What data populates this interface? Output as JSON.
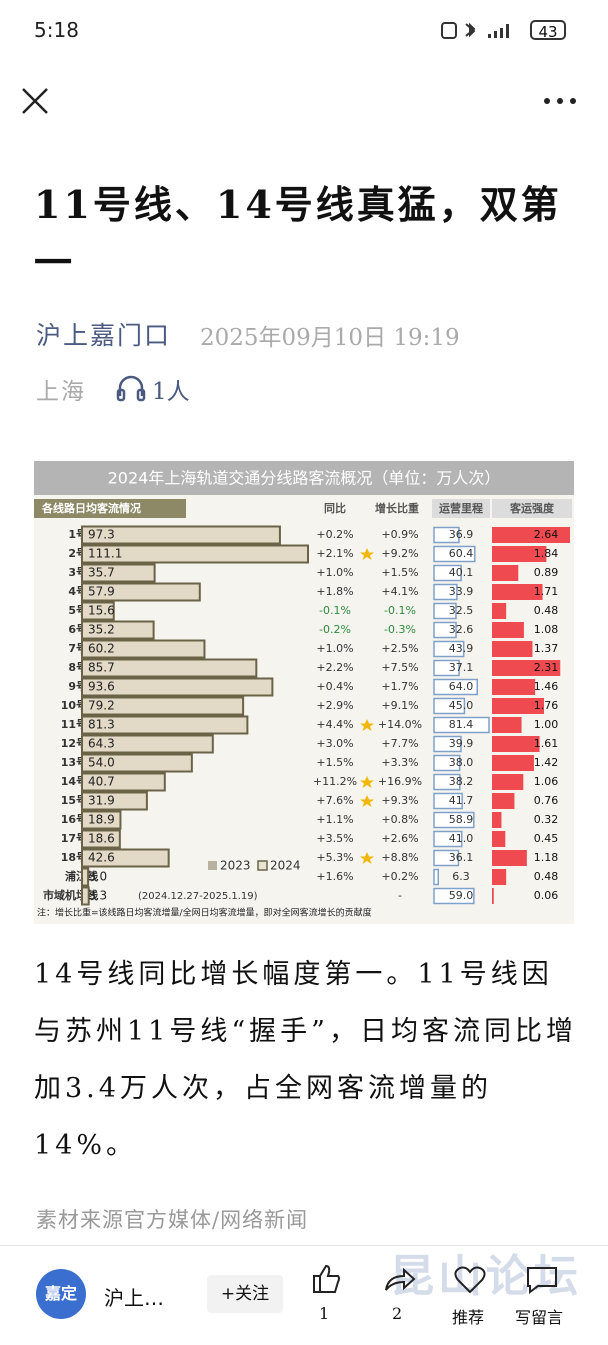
{
  "status_bar": {
    "time": "5:18",
    "battery": "43"
  },
  "article": {
    "title": "11号线、14号线真猛，双第一",
    "author": "沪上嘉门口",
    "datetime": "2025年09月10日 19:19",
    "location": "上海",
    "listeners": "1人",
    "body": "14号线同比增长幅度第一。11号线因与苏州11号线“握手”，日均客流同比增加3.4万人次，占全网客流增量的14%。",
    "source": "素材来源官方媒体/网络新闻"
  },
  "infographic": {
    "title": "2024年上海轨道交通分线路客流概况（单位：万人次）",
    "headers": [
      "各线路日均客流情况",
      "同比",
      "增长比重",
      "运营里程",
      "客运强度"
    ],
    "lines": [
      "1号线",
      "2号线",
      "3号线",
      "4号线",
      "5号线",
      "6号线",
      "7号线",
      "8号线",
      "9号线",
      "10号线",
      "11号线",
      "12号线",
      "13号线",
      "14号线",
      "15号线",
      "16号线",
      "17号线",
      "18号线",
      "浦江线",
      "市域机场线"
    ],
    "ridership": [
      97.3,
      111.1,
      35.7,
      57.9,
      15.6,
      35.2,
      60.2,
      85.7,
      93.6,
      79.2,
      81.3,
      64.3,
      54.0,
      40.7,
      31.9,
      18.9,
      18.6,
      42.6,
      3.0,
      3.3
    ],
    "ridership_labels": [
      "97.3",
      "111.1",
      "35.7",
      "57.9",
      "15.6",
      "35.2",
      "60.2",
      "85.7",
      "93.6",
      "79.2",
      "81.3",
      "64.3",
      "54.0",
      "40.7",
      "31.9",
      "18.9",
      "18.6",
      "42.6",
      "3.0",
      "3.3"
    ],
    "yoy": [
      "+0.2%",
      "+2.1%",
      "+1.0%",
      "+1.8%",
      "-0.1%",
      "-0.2%",
      "+1.0%",
      "+2.2%",
      "+0.4%",
      "+2.9%",
      "+4.4%",
      "+3.0%",
      "+1.5%",
      "+11.2%",
      "+7.6%",
      "+1.1%",
      "+3.5%",
      "+5.3%",
      "+1.6%",
      null
    ],
    "share": [
      "+0.9%",
      "+9.2%",
      "+1.5%",
      "+4.1%",
      "-0.1%",
      "-0.3%",
      "+2.5%",
      "+7.5%",
      "+1.7%",
      "+9.1%",
      "+14.0%",
      "+7.7%",
      "+3.3%",
      "+16.9%",
      "+9.3%",
      "+0.8%",
      "+2.6%",
      "+8.8%",
      "+0.2%",
      "-"
    ],
    "star": [
      false,
      true,
      false,
      false,
      false,
      false,
      false,
      false,
      false,
      false,
      true,
      false,
      false,
      true,
      true,
      false,
      false,
      true,
      false,
      false
    ],
    "km": [
      36.9,
      60.4,
      40.1,
      33.9,
      32.5,
      32.6,
      43.9,
      37.1,
      64.0,
      45.0,
      81.4,
      39.9,
      38.0,
      38.2,
      41.7,
      58.9,
      41.0,
      36.1,
      6.3,
      59.0
    ],
    "km_labels": [
      "36.9",
      "60.4",
      "40.1",
      "33.9",
      "32.5",
      "32.6",
      "43.9",
      "37.1",
      "64.0",
      "45.0",
      "81.4",
      "39.9",
      "38.0",
      "38.2",
      "41.7",
      "58.9",
      "41.0",
      "36.1",
      "6.3",
      "59.0"
    ],
    "intensity": [
      2.64,
      1.84,
      0.89,
      1.71,
      0.48,
      1.08,
      1.37,
      2.31,
      1.46,
      1.76,
      1.0,
      1.61,
      1.42,
      1.06,
      0.76,
      0.32,
      0.45,
      1.18,
      0.48,
      0.06
    ],
    "intensity_labels": [
      "2.64",
      "1.84",
      "0.89",
      "1.71",
      "0.48",
      "1.08",
      "1.37",
      "2.31",
      "1.46",
      "1.76",
      "1.00",
      "1.61",
      "1.42",
      "1.06",
      "0.76",
      "0.32",
      "0.45",
      "1.18",
      "0.48",
      "0.06"
    ],
    "airport_note": "(2024.12.27-2025.1.19)",
    "legend": [
      "2023",
      "2024"
    ],
    "footnote": "注：增长比重=该线路日均客流增量/全网日均客流增量，即对全网客流增长的贡献度"
  },
  "bottom_bar": {
    "avatar_text": "嘉定",
    "account": "沪上…",
    "follow": "+关注",
    "likes": "1",
    "shares": "2",
    "recommend": "推荐",
    "comment": "写留言"
  },
  "watermark": "昆山论坛"
}
